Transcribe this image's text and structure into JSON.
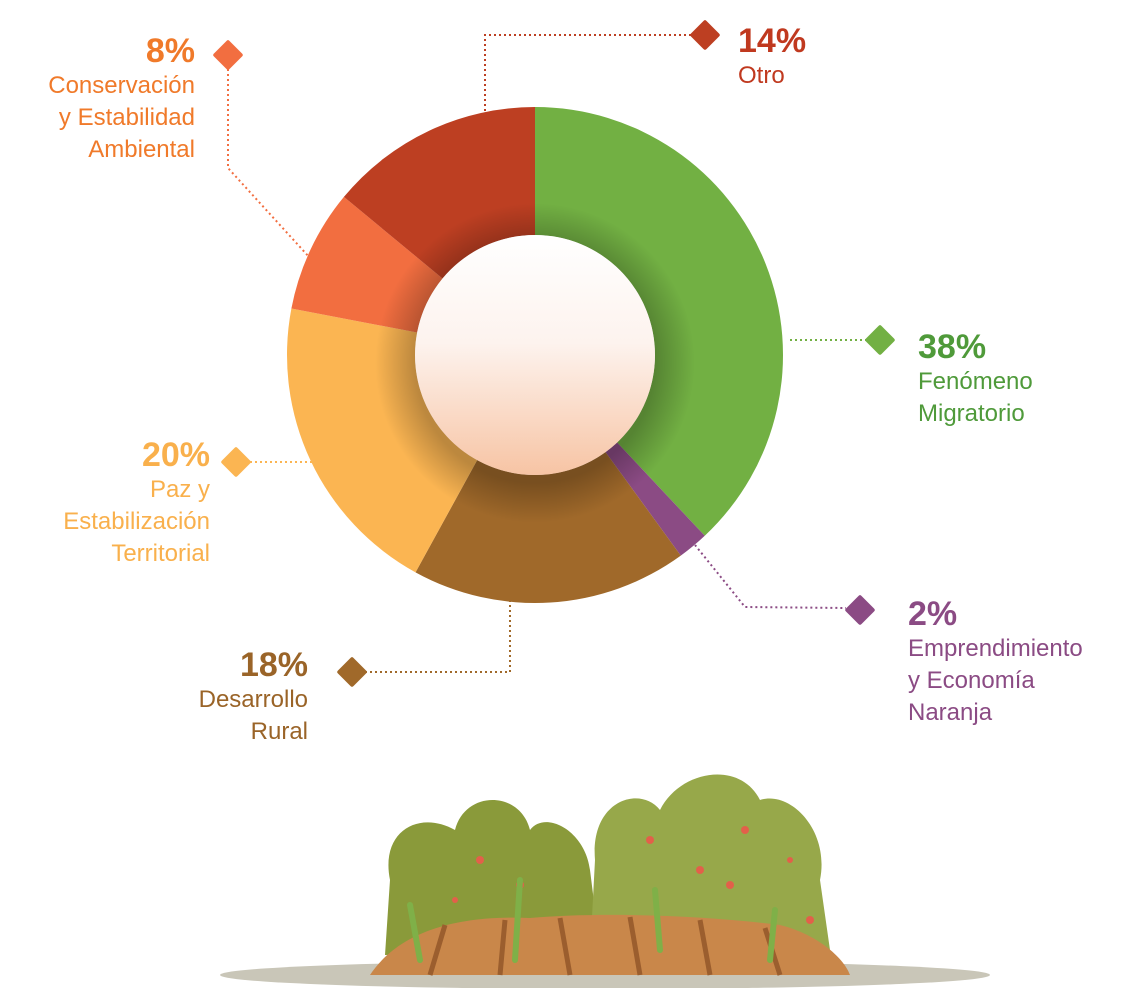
{
  "chart_data": {
    "type": "pie",
    "categories": [
      "Fenómeno\nMigratorio",
      "Emprendimiento\ny Economía\nNaranja",
      "Desarrollo\nRural",
      "Paz y\nEstabilización\nTerritorial",
      "Conservación\ny Estabilidad\nAmbiental",
      "Otro"
    ],
    "values": [
      38,
      2,
      18,
      20,
      8,
      14
    ],
    "value_labels": [
      "38%",
      "2%",
      "18%",
      "20%",
      "8%",
      "14%"
    ],
    "colors": [
      "#72b043",
      "#8b4b84",
      "#a0692a",
      "#fbb552",
      "#f26e40",
      "#bd3f22"
    ],
    "label_colors": [
      "#4f9a3a",
      "#8b4b84",
      "#9a6428",
      "#f9b04c",
      "#f07a2a",
      "#c0391f"
    ]
  }
}
